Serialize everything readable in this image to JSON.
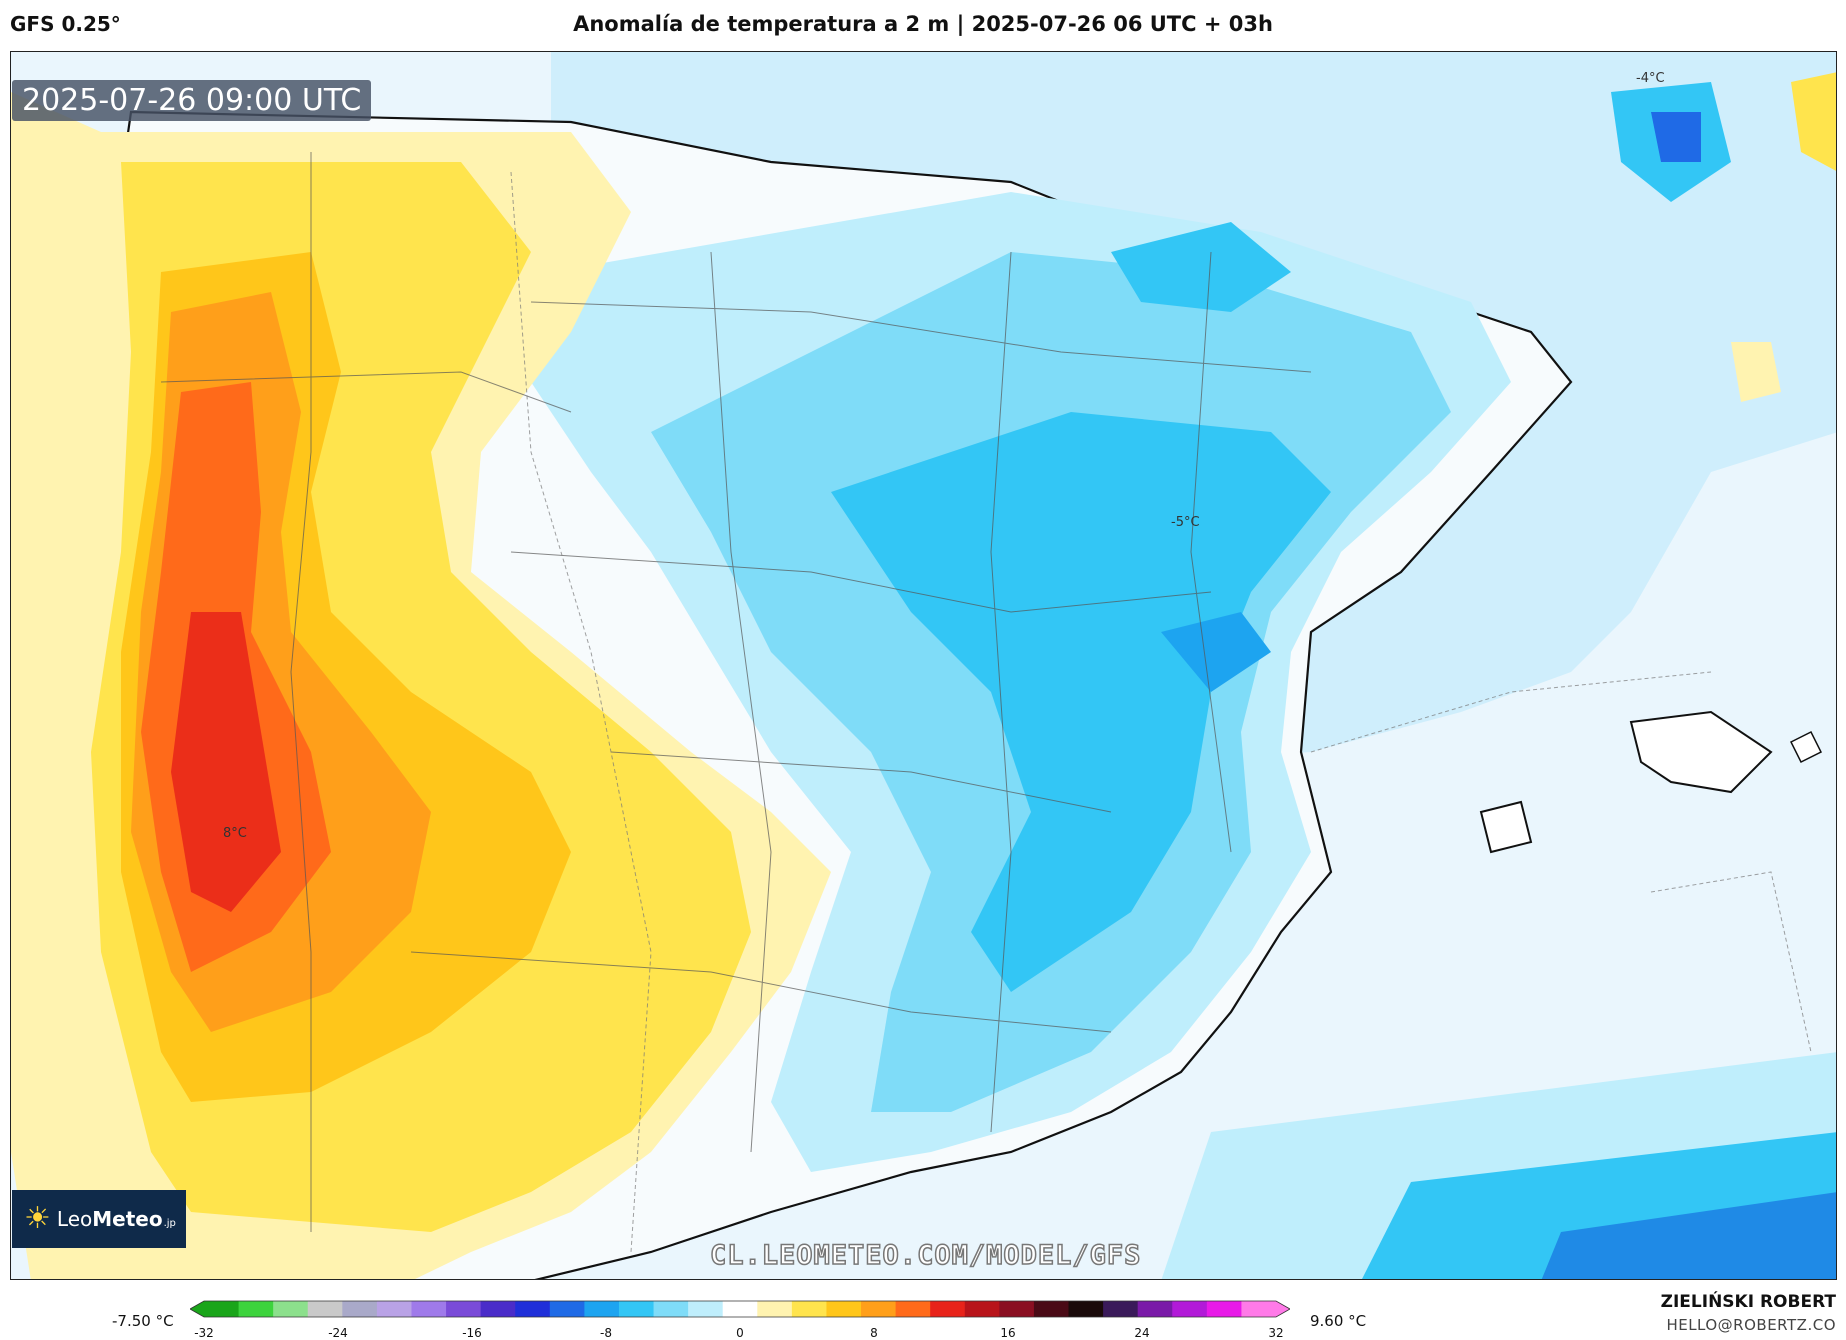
{
  "header": {
    "model": "GFS 0.25°",
    "title": "Anomalía de temperatura a 2 m | 2025-07-26 06 UTC + 03h"
  },
  "map": {
    "timestamp": "2025-07-26 09:00 UTC",
    "labels": {
      "north_east": "-4°C",
      "east_center": "-5°C",
      "portugal": "8°C"
    },
    "watermark_url": "CL.LEOMETEO.COM/MODEL/GFS",
    "logo": {
      "text_light": "Leo",
      "text_bold": "Meteo",
      "suffix": ".jp"
    }
  },
  "colorbar": {
    "min_label": "-7.50 °C",
    "max_label": "9.60 °C",
    "ticks": [
      "-32",
      "-24",
      "-16",
      "-8",
      "0",
      "8",
      "16",
      "24",
      "32"
    ],
    "colors": [
      "#1aa51a",
      "#3dd33d",
      "#8ce08c",
      "#c9c9c9",
      "#a9a9c9",
      "#b9a2e6",
      "#9f7aea",
      "#7a4bd8",
      "#4a2cc9",
      "#1f2fd9",
      "#1f6ae6",
      "#1da4f0",
      "#33c6f5",
      "#7fdcf8",
      "#bfeefc",
      "#ffffff",
      "#fff3b0",
      "#ffe44d",
      "#ffc61a",
      "#ff9f1a",
      "#ff6a1a",
      "#e8231a",
      "#b8141a",
      "#8a0f22",
      "#4a0a16",
      "#1a0a0a",
      "#3a1a5a",
      "#7a1aa8",
      "#b21ad8",
      "#e81ae8",
      "#ff7ae8"
    ],
    "accent_colors": {
      "warm": "#f28c28",
      "cool": "#33c6f5"
    }
  },
  "footer": {
    "author": "ZIELIŃSKI ROBERT",
    "email": "HELLO@ROBERTZ.CO"
  }
}
